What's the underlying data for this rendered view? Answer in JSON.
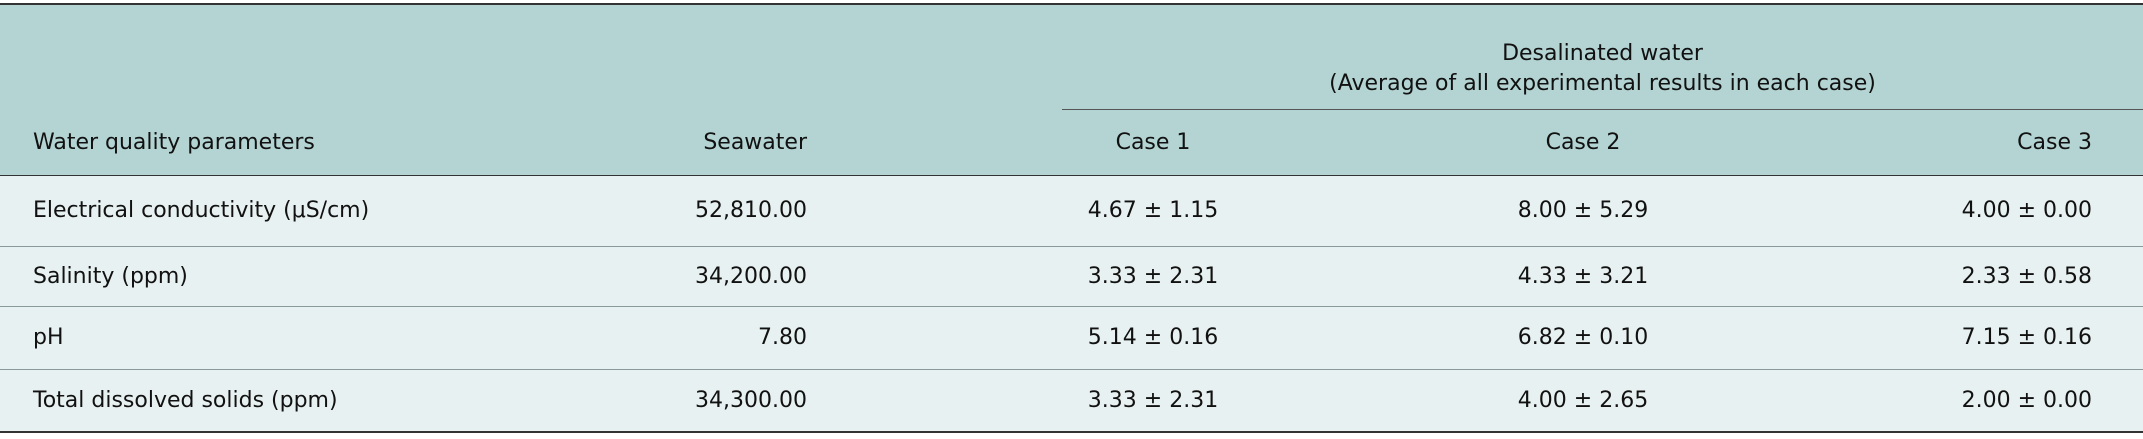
{
  "table": {
    "group_header": [
      "Desalinated water",
      "(Average of all experimental results in each case)"
    ],
    "columns": [
      "Water quality parameters",
      "Seawater",
      "Case 1",
      "Case 2",
      "Case 3"
    ],
    "rows": [
      [
        "Electrical conductivity (μS/cm)",
        "52,810.00",
        "4.67 ± 1.15",
        "8.00 ± 5.29",
        "4.00 ± 0.00"
      ],
      [
        "Salinity (ppm)",
        "34,200.00",
        "3.33 ± 2.31",
        "4.33 ± 3.21",
        "2.33 ± 0.58"
      ],
      [
        "pH",
        "7.80",
        "5.14 ± 0.16",
        "6.82 ± 0.10",
        "7.15 ± 0.16"
      ],
      [
        "Total dissolved solids (ppm)",
        "34,300.00",
        "3.33 ± 2.31",
        "4.00 ± 2.65",
        "2.00 ± 0.00"
      ]
    ]
  }
}
